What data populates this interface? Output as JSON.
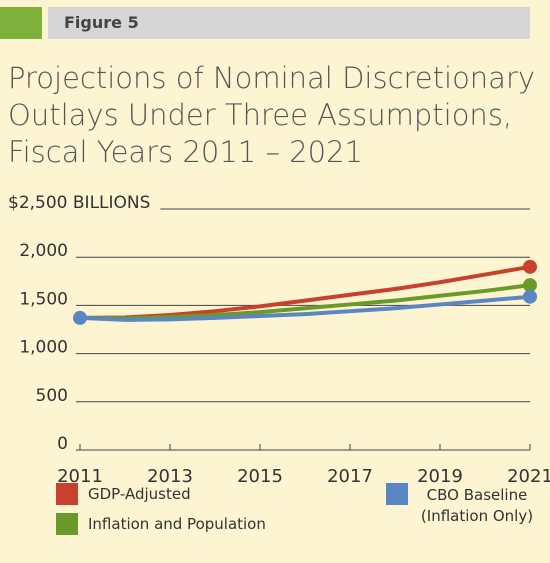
{
  "header": "Figure 5",
  "chart_data": {
    "type": "line",
    "title": "Projections of Nominal Discretionary Outlays Under Three Assumptions, Fiscal Years 2011 – 2021",
    "x": [
      2011,
      2012,
      2013,
      2014,
      2015,
      2016,
      2017,
      2018,
      2019,
      2020,
      2021
    ],
    "series": [
      {
        "name": "GDP-Adjusted",
        "color": "#c8412f",
        "values": [
          1370,
          1375,
          1400,
          1440,
          1490,
          1550,
          1610,
          1670,
          1740,
          1820,
          1900
        ]
      },
      {
        "name": "Inflation and Population",
        "color": "#6a9a2a",
        "values": [
          1370,
          1365,
          1380,
          1400,
          1430,
          1470,
          1510,
          1550,
          1600,
          1650,
          1710
        ]
      },
      {
        "name": "CBO Baseline (Inflation Only)",
        "color": "#5b86c4",
        "values": [
          1370,
          1350,
          1355,
          1370,
          1390,
          1410,
          1440,
          1470,
          1510,
          1550,
          1590
        ]
      }
    ],
    "xlim": [
      2011,
      2021
    ],
    "xticks": [
      2011,
      2013,
      2015,
      2017,
      2019,
      2021
    ],
    "ylim": [
      0,
      2500
    ],
    "yticks": [
      0,
      {
        "value": 500,
        "label": "500"
      },
      {
        "value": 1000,
        "label": "1,000"
      },
      {
        "value": 1500,
        "label": "1,500"
      },
      {
        "value": 2000,
        "label": "2,000"
      },
      {
        "value": 2500,
        "label": "$2,500 BILLIONS"
      }
    ],
    "grid": true
  }
}
